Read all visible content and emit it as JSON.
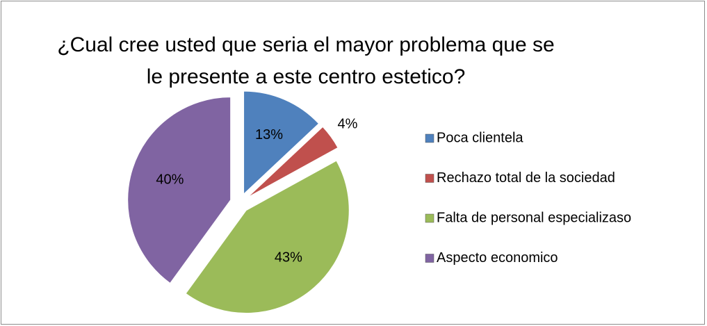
{
  "chart_data": {
    "type": "pie",
    "title": "¿Cual cree usted que seria el mayor problema que se le presente a este centro estetico?",
    "categories": [
      "Poca clientela",
      "Rechazo total de la sociedad",
      "Falta de personal especializaso",
      "Aspecto economico"
    ],
    "values": [
      13,
      4,
      43,
      40
    ],
    "value_labels": [
      "13%",
      "4%",
      "43%",
      "40%"
    ],
    "colors": [
      "#4f81bd",
      "#c0504d",
      "#9bbb59",
      "#8064a2"
    ],
    "legend": "right"
  }
}
